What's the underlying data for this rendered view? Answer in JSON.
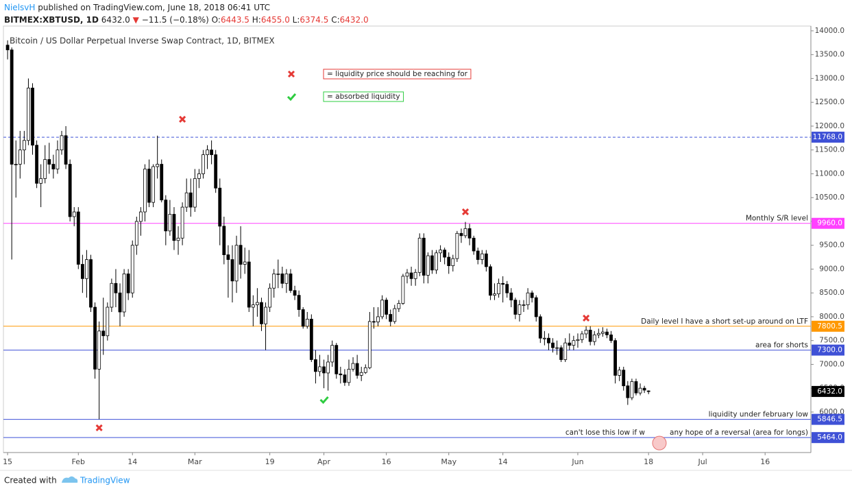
{
  "header": {
    "author": "NielsvH",
    "published": "published on TradingView.com, June 18, 2018 06:41 UTC",
    "symbol": "BITMEX:XBTUSD, 1D",
    "last": "6432.0",
    "change": "−11.5 (−0.18%)",
    "ohlc": [
      {
        "key": "O:",
        "value": "6443.5"
      },
      {
        "key": "H:",
        "value": "6455.0"
      },
      {
        "key": "L:",
        "value": "6374.5"
      },
      {
        "key": "C:",
        "value": "6432.0"
      }
    ]
  },
  "footer": {
    "created": "Created with",
    "brand": "TradingView"
  },
  "chart_data": {
    "type": "candlestick",
    "title": "Bitcoin / US Dollar Perpetual Inverse Swap Contract, 1D, BITMEX",
    "grid": false,
    "up_color": "#ffffff",
    "down_color": "#000000",
    "xlim": [
      -1,
      193
    ],
    "ylim": [
      5150,
      14100
    ],
    "xticks": [
      {
        "value": 0,
        "label": "15"
      },
      {
        "value": 17,
        "label": "Feb"
      },
      {
        "value": 30,
        "label": "14"
      },
      {
        "value": 45,
        "label": "Mar"
      },
      {
        "value": 63,
        "label": "19"
      },
      {
        "value": 76,
        "label": "Apr"
      },
      {
        "value": 91,
        "label": "16"
      },
      {
        "value": 106,
        "label": "May"
      },
      {
        "value": 119,
        "label": "14"
      },
      {
        "value": 137,
        "label": "Jun"
      },
      {
        "value": 154,
        "label": "18"
      },
      {
        "value": 167,
        "label": "Jul"
      },
      {
        "value": 182,
        "label": "16"
      }
    ],
    "yticks": [
      {
        "value": 6000,
        "label": "6000.0"
      },
      {
        "value": 6500,
        "label": "6500.0"
      },
      {
        "value": 7000,
        "label": "7000.0"
      },
      {
        "value": 7500,
        "label": "7500.0"
      },
      {
        "value": 8000,
        "label": "8000.0"
      },
      {
        "value": 8500,
        "label": "8500.0"
      },
      {
        "value": 9000,
        "label": "9000.0"
      },
      {
        "value": 9500,
        "label": "9500.0"
      },
      {
        "value": 10000,
        "label": "10000.0"
      },
      {
        "value": 10500,
        "label": "10500.0"
      },
      {
        "value": 11000,
        "label": "11000.0"
      },
      {
        "value": 11500,
        "label": "11500.0"
      },
      {
        "value": 12000,
        "label": "12000.0"
      },
      {
        "value": 12500,
        "label": "12500.0"
      },
      {
        "value": 13000,
        "label": "13000.0"
      },
      {
        "value": 13500,
        "label": "13500.0"
      },
      {
        "value": 14000,
        "label": "14000.0"
      }
    ],
    "open": [
      13700,
      13600,
      11200,
      11200,
      11500,
      11700,
      12800,
      11600,
      10800,
      10900,
      11300,
      11200,
      11100,
      11500,
      11800,
      11200,
      10100,
      10200,
      9100,
      8800,
      9200,
      8200,
      6900,
      7700,
      7600,
      8200,
      8700,
      8500,
      8100,
      8900,
      8500,
      9500,
      10000,
      10200,
      11100,
      10400,
      11150,
      11200,
      10450,
      9800,
      10150,
      9600,
      9650,
      10300,
      10600,
      10300,
      10900,
      11000,
      11400,
      11500,
      11400,
      10700,
      9900,
      9300,
      9200,
      8750,
      9500,
      9100,
      9150,
      8200,
      8250,
      8300,
      7850,
      8200,
      8600,
      8900,
      8900,
      8700,
      8900,
      8550,
      8450,
      8150,
      7800,
      7950,
      7100,
      6850,
      6950,
      6820,
      7050,
      7400,
      6800,
      6780,
      6620,
      6900,
      7020,
      6770,
      6830,
      6930,
      7900,
      7890,
      8000,
      8350,
      8050,
      7900,
      8170,
      8280,
      8850,
      8920,
      8800,
      8930,
      9650,
      8870,
      9280,
      8980,
      9340,
      9400,
      9250,
      9070,
      9220,
      9750,
      9700,
      9850,
      9650,
      9380,
      9200,
      9320,
      9050,
      8450,
      8480,
      8700,
      8680,
      8500,
      8350,
      8050,
      8250,
      8250,
      8500,
      8400,
      8000,
      7550,
      7550,
      7450,
      7350,
      7350,
      7100,
      7450,
      7400,
      7500,
      7520,
      7640,
      7720,
      7480,
      7620,
      7650,
      7680,
      7620,
      7500,
      6770,
      6880,
      6550,
      6300,
      6640,
      6400,
      6500,
      6443.5
    ],
    "high": [
      13800,
      13650,
      11700,
      11900,
      11900,
      13000,
      12900,
      11700,
      11200,
      11600,
      11650,
      11400,
      11700,
      11900,
      12000,
      11300,
      10300,
      10300,
      9300,
      9400,
      9300,
      8300,
      7900,
      8400,
      8300,
      8800,
      9000,
      8700,
      9000,
      9000,
      9600,
      10100,
      10300,
      11200,
      11300,
      11200,
      11800,
      11300,
      10550,
      10450,
      10300,
      9900,
      10400,
      10900,
      10900,
      11100,
      11100,
      11500,
      11600,
      11700,
      11500,
      10900,
      10100,
      9500,
      9500,
      9700,
      9900,
      9450,
      9400,
      8450,
      8600,
      8400,
      8300,
      8700,
      9000,
      9200,
      9050,
      9000,
      9000,
      8650,
      8550,
      8200,
      8100,
      8050,
      7300,
      7200,
      7100,
      7200,
      7500,
      7450,
      6950,
      6900,
      7100,
      7150,
      7200,
      6950,
      7000,
      8100,
      8200,
      8200,
      8450,
      8400,
      8150,
      8250,
      8350,
      8900,
      9000,
      9050,
      9000,
      9750,
      9750,
      9350,
      9400,
      9400,
      9500,
      9450,
      9350,
      9300,
      9800,
      9850,
      9990,
      9950,
      9700,
      9450,
      9400,
      9400,
      9100,
      8700,
      8800,
      8850,
      8750,
      8600,
      8400,
      8350,
      8350,
      8600,
      8550,
      8450,
      8050,
      7700,
      7650,
      7550,
      7500,
      7400,
      7550,
      7650,
      7600,
      7650,
      7700,
      7800,
      7800,
      7700,
      7750,
      7780,
      7750,
      7700,
      7550,
      6950,
      6950,
      6650,
      6700,
      6700,
      6600,
      6550,
      6455
    ],
    "low": [
      13400,
      9200,
      10500,
      10900,
      11200,
      11600,
      11400,
      10700,
      10300,
      10800,
      11000,
      10900,
      11000,
      11400,
      11100,
      10000,
      9900,
      9000,
      8500,
      8400,
      8100,
      6700,
      5850,
      7200,
      7500,
      8100,
      8200,
      7800,
      8000,
      8350,
      8400,
      9300,
      9700,
      10000,
      10300,
      10300,
      10900,
      10400,
      9500,
      9700,
      9400,
      9300,
      9500,
      10200,
      10100,
      10200,
      10700,
      10900,
      11100,
      11200,
      10600,
      9500,
      9100,
      8400,
      8300,
      8500,
      8800,
      8900,
      8100,
      7800,
      8000,
      7700,
      7300,
      8100,
      8400,
      8600,
      8600,
      8500,
      8500,
      8350,
      8000,
      7750,
      7750,
      7050,
      6600,
      6750,
      6500,
      6450,
      6950,
      6700,
      6600,
      6550,
      6550,
      6850,
      6700,
      6650,
      6800,
      6900,
      7750,
      7800,
      7950,
      7950,
      7800,
      7850,
      8100,
      8250,
      8700,
      8650,
      8650,
      8850,
      8700,
      8700,
      8900,
      8900,
      9150,
      9100,
      8900,
      8950,
      9150,
      9550,
      9650,
      9500,
      9300,
      9100,
      9100,
      8950,
      8350,
      8350,
      8400,
      8300,
      8400,
      8200,
      7950,
      7900,
      8100,
      8150,
      8300,
      7900,
      7450,
      7400,
      7300,
      7250,
      7200,
      7050,
      7050,
      7300,
      7300,
      7350,
      7450,
      7550,
      7400,
      7400,
      7550,
      7580,
      7550,
      7450,
      6600,
      6650,
      6450,
      6150,
      6250,
      6350,
      6350,
      6400,
      6374.5
    ],
    "close": [
      13600,
      11200,
      11200,
      11500,
      11700,
      12800,
      11600,
      10800,
      10900,
      11300,
      11200,
      11100,
      11500,
      11800,
      11200,
      10100,
      10200,
      9100,
      8800,
      9200,
      8200,
      6900,
      7700,
      7600,
      8200,
      8700,
      8500,
      8100,
      8900,
      8500,
      9500,
      10000,
      10200,
      11100,
      10400,
      11150,
      11200,
      10450,
      9800,
      10150,
      9600,
      9650,
      10300,
      10600,
      10300,
      10900,
      11000,
      11400,
      11500,
      11400,
      10700,
      9900,
      9300,
      9200,
      8750,
      9500,
      9100,
      9150,
      8200,
      8250,
      8300,
      7850,
      8200,
      8600,
      8900,
      8900,
      8700,
      8900,
      8550,
      8450,
      8150,
      7800,
      7950,
      7100,
      6850,
      6950,
      6820,
      7050,
      7400,
      6800,
      6780,
      6620,
      6900,
      7020,
      6770,
      6830,
      6930,
      7900,
      7890,
      8000,
      8350,
      8050,
      7900,
      8170,
      8280,
      8850,
      8920,
      8800,
      8930,
      9650,
      8870,
      9280,
      8980,
      9340,
      9400,
      9250,
      9070,
      9220,
      9750,
      9700,
      9850,
      9650,
      9380,
      9200,
      9320,
      9050,
      8450,
      8480,
      8700,
      8680,
      8500,
      8350,
      8050,
      8250,
      8250,
      8500,
      8400,
      8000,
      7550,
      7550,
      7450,
      7350,
      7350,
      7100,
      7450,
      7400,
      7500,
      7520,
      7640,
      7720,
      7480,
      7620,
      7650,
      7680,
      7620,
      7500,
      6770,
      6880,
      6550,
      6300,
      6640,
      6400,
      6500,
      6460,
      6432
    ],
    "levels": [
      {
        "value": 11768,
        "label": "11768.0",
        "color": "#3f51d6",
        "style": "dashed"
      },
      {
        "value": 9960,
        "label": "9960.0",
        "color": "#ff40ff",
        "style": "solid",
        "text": "Monthly S/R level"
      },
      {
        "value": 7800.5,
        "label": "7800.5",
        "color": "#ff9800",
        "style": "solid",
        "text": "Daily level I have a short set-up around on LTF"
      },
      {
        "value": 7300,
        "label": "7300.0",
        "color": "#3f51d6",
        "style": "solid",
        "text": "area for shorts"
      },
      {
        "value": 5846.5,
        "label": "5846.5",
        "color": "#3f51d6",
        "style": "solid",
        "text": "liquidity under february low"
      },
      {
        "value": 5464,
        "label": "5464.0",
        "color": "#3f51d6",
        "style": "solid",
        "text": "can't lose this low if w",
        "text2": "any hope of a reversal (area for longs)"
      }
    ],
    "last_price": {
      "value": 6432,
      "label": "6432.0"
    },
    "markers": [
      {
        "kind": "cross",
        "x": 42,
        "y": 12144
      },
      {
        "kind": "cross",
        "x": 110,
        "y": 10201
      },
      {
        "kind": "cross",
        "x": 139,
        "y": 7971
      },
      {
        "kind": "cross",
        "x": 22,
        "y": 5669
      },
      {
        "kind": "check",
        "x": 76,
        "y": 6259
      }
    ],
    "legend": [
      {
        "kind": "cross",
        "text": "= liquidity price should be reaching for",
        "color": "#e53935"
      },
      {
        "kind": "check",
        "text": "= absorbed liquidity",
        "color": "#2ecc40"
      }
    ]
  }
}
